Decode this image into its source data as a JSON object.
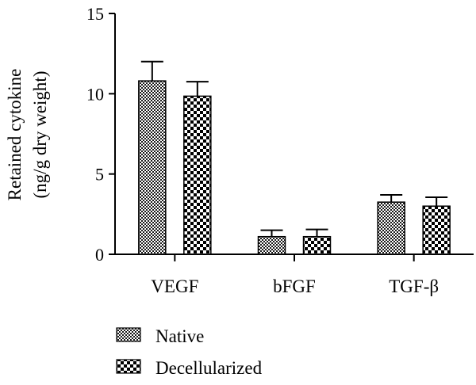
{
  "chart_data": {
    "type": "bar",
    "categories": [
      "VEGF",
      "bFGF",
      "TGF-β"
    ],
    "series": [
      {
        "name": "Native",
        "values": [
          10.8,
          1.1,
          3.25
        ],
        "errors": [
          1.2,
          0.4,
          0.45
        ],
        "pattern": "fine-checker"
      },
      {
        "name": "Decellularized",
        "values": [
          9.85,
          1.1,
          3.0
        ],
        "errors": [
          0.9,
          0.45,
          0.55
        ],
        "pattern": "coarse-checker"
      }
    ],
    "ylabel_line1": "Retained cytokine",
    "ylabel_line2": "(ng/g dry weight)",
    "ylim": [
      0,
      15
    ],
    "yticks": [
      0,
      5,
      10,
      15
    ],
    "grid": false,
    "legend_position": "bottom-left"
  }
}
